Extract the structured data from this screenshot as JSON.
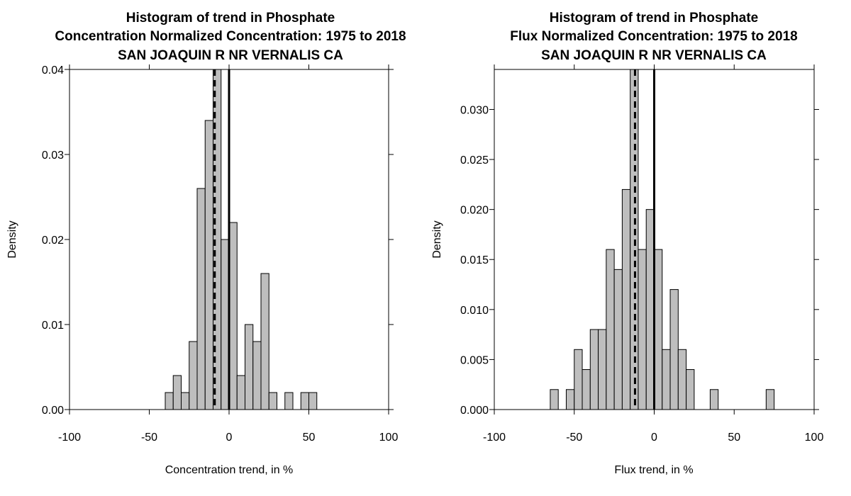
{
  "chart_data": [
    {
      "type": "histogram",
      "title_lines": [
        "Histogram of trend in Phosphate",
        "Concentration Normalized Concentration: 1975 to 2018",
        "SAN JOAQUIN R NR VERNALIS CA"
      ],
      "xlabel": "Concentration trend, in %",
      "ylabel": "Density",
      "xlim": [
        -100,
        100
      ],
      "ylim": [
        0,
        0.04
      ],
      "x_ticks": [
        -100,
        -50,
        0,
        50,
        100
      ],
      "x_tick_labels": [
        "-100",
        "-50",
        "0",
        "50",
        "100"
      ],
      "y_ticks": [
        0,
        0.01,
        0.02,
        0.03,
        0.04
      ],
      "y_tick_labels": [
        "0.00",
        "0.01",
        "0.02",
        "0.03",
        "0.04"
      ],
      "bin_width": 5,
      "bins": [
        {
          "x0": -40,
          "density": 0.002
        },
        {
          "x0": -35,
          "density": 0.004
        },
        {
          "x0": -30,
          "density": 0.002
        },
        {
          "x0": -25,
          "density": 0.008
        },
        {
          "x0": -20,
          "density": 0.026
        },
        {
          "x0": -15,
          "density": 0.034
        },
        {
          "x0": -10,
          "density": 0.04
        },
        {
          "x0": -5,
          "density": 0.02
        },
        {
          "x0": 0,
          "density": 0.022
        },
        {
          "x0": 5,
          "density": 0.004
        },
        {
          "x0": 10,
          "density": 0.01
        },
        {
          "x0": 15,
          "density": 0.008
        },
        {
          "x0": 20,
          "density": 0.016
        },
        {
          "x0": 25,
          "density": 0.002
        },
        {
          "x0": 35,
          "density": 0.002
        },
        {
          "x0": 45,
          "density": 0.002
        },
        {
          "x0": 50,
          "density": 0.002
        }
      ],
      "solid_line_x": 0,
      "dashed_line_x": -9,
      "bar_color": "#bebebe",
      "grid": false
    },
    {
      "type": "histogram",
      "title_lines": [
        "Histogram of trend in Phosphate",
        "Flux Normalized Concentration: 1975 to 2018",
        "SAN JOAQUIN R NR VERNALIS CA"
      ],
      "xlabel": "Flux trend, in %",
      "ylabel": "Density",
      "xlim": [
        -100,
        100
      ],
      "ylim": [
        0,
        0.034
      ],
      "x_ticks": [
        -100,
        -50,
        0,
        50,
        100
      ],
      "x_tick_labels": [
        "-100",
        "-50",
        "0",
        "50",
        "100"
      ],
      "y_ticks": [
        0,
        0.005,
        0.01,
        0.015,
        0.02,
        0.025,
        0.03
      ],
      "y_tick_labels": [
        "0.000",
        "0.005",
        "0.010",
        "0.015",
        "0.020",
        "0.025",
        "0.030"
      ],
      "bin_width": 5,
      "bins": [
        {
          "x0": -65,
          "density": 0.002
        },
        {
          "x0": -55,
          "density": 0.002
        },
        {
          "x0": -50,
          "density": 0.006
        },
        {
          "x0": -45,
          "density": 0.004
        },
        {
          "x0": -40,
          "density": 0.008
        },
        {
          "x0": -35,
          "density": 0.008
        },
        {
          "x0": -30,
          "density": 0.016
        },
        {
          "x0": -25,
          "density": 0.014
        },
        {
          "x0": -20,
          "density": 0.022
        },
        {
          "x0": -15,
          "density": 0.034
        },
        {
          "x0": -10,
          "density": 0.016
        },
        {
          "x0": -5,
          "density": 0.02
        },
        {
          "x0": 0,
          "density": 0.016
        },
        {
          "x0": 5,
          "density": 0.006
        },
        {
          "x0": 10,
          "density": 0.012
        },
        {
          "x0": 15,
          "density": 0.006
        },
        {
          "x0": 20,
          "density": 0.004
        },
        {
          "x0": 35,
          "density": 0.002
        },
        {
          "x0": 70,
          "density": 0.002
        }
      ],
      "solid_line_x": 0,
      "dashed_line_x": -12,
      "bar_color": "#bebebe",
      "grid": false
    }
  ]
}
